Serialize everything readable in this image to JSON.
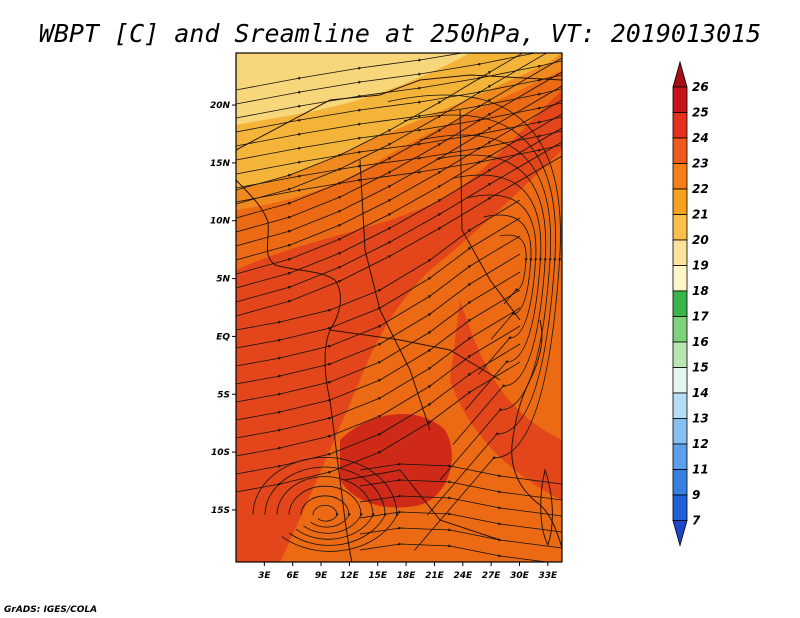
{
  "title": "WBPT [C] and Sreamline at 250hPa, VT: 2019013015",
  "footer": "GrADS: IGES/COLA",
  "map": {
    "lon_labels": [
      "3E",
      "6E",
      "9E",
      "12E",
      "15E",
      "18E",
      "21E",
      "24E",
      "27E",
      "30E",
      "33E"
    ],
    "lat_labels": [
      "20N",
      "15N",
      "10N",
      "5N",
      "EQ",
      "5S",
      "10S",
      "15S"
    ],
    "lon_range": [
      0,
      34.5
    ],
    "lat_range": [
      -19.5,
      24.5
    ],
    "fill_colors": {
      "c19": "#f7d77a",
      "c20": "#f4b43a",
      "c22": "#f08a1e",
      "c23": "#ec6a14",
      "c24": "#e2461a",
      "c25": "#cf2a18"
    },
    "streamline_color": "#111111",
    "coast_color": "#2a1208"
  },
  "colorbar": {
    "levels": [
      "26",
      "25",
      "24",
      "23",
      "22",
      "21",
      "20",
      "19",
      "18",
      "17",
      "16",
      "15",
      "14",
      "13",
      "12",
      "11",
      "9",
      "7"
    ],
    "colors": [
      "#a50f15",
      "#c8151b",
      "#e5301c",
      "#f05a1e",
      "#f47f18",
      "#f7a01f",
      "#f9c04a",
      "#fbe39d",
      "#fdf6c8",
      "#39b54a",
      "#7ed27a",
      "#b7e6b0",
      "#e6f6f2",
      "#b6ddf6",
      "#86c0f0",
      "#5aa0ea",
      "#3580e0",
      "#1f5fd8",
      "#1c46c8"
    ]
  }
}
